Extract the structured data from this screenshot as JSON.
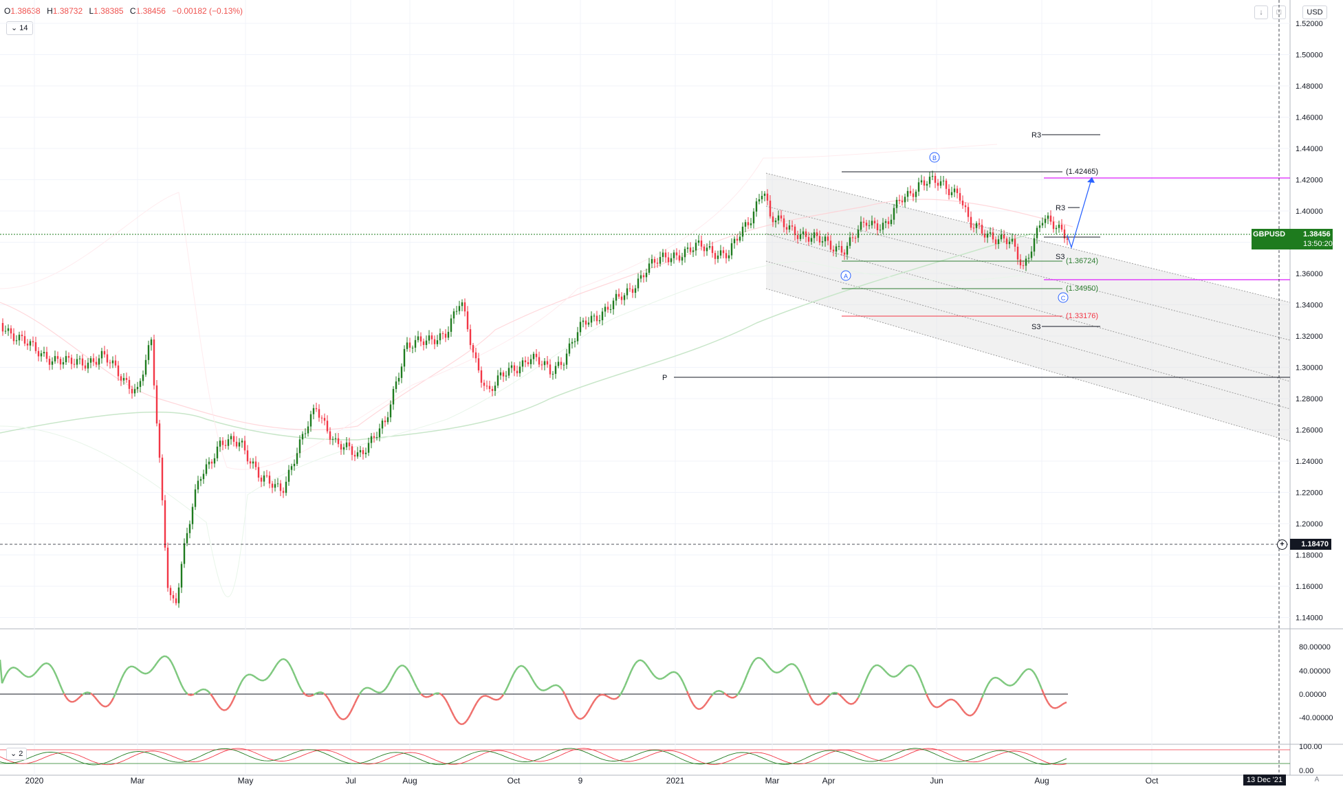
{
  "header": {
    "open_label": "O",
    "open": "1.38638",
    "high_label": "H",
    "high": "1.38732",
    "low_label": "L",
    "low": "1.38385",
    "close_label": "C",
    "close": "1.38456",
    "change": "−0.00182 (−0.13%)",
    "legend_toggle": "14",
    "currency": "USD"
  },
  "price_axis": {
    "ticks": [
      "1.52000",
      "1.50000",
      "1.48000",
      "1.46000",
      "1.44000",
      "1.42000",
      "1.40000",
      "1.38000",
      "1.36000",
      "1.34000",
      "1.32000",
      "1.30000",
      "1.28000",
      "1.26000",
      "1.24000",
      "1.22000",
      "1.20000",
      "1.18000",
      "1.16000",
      "1.14000"
    ],
    "symbol": "GBPUSD",
    "last_price": "1.38456",
    "countdown": "13:50:20",
    "crosshair_price": "1.18470"
  },
  "time_axis": {
    "labels": [
      "2020",
      "Mar",
      "May",
      "Jul",
      "Aug",
      "Oct",
      "9",
      "2021",
      "Mar",
      "Apr",
      "Jun",
      "Aug",
      "Oct"
    ],
    "crosshair_date": "13 Dec '21",
    "auto_button": "A"
  },
  "annotations": {
    "wave_a": "A",
    "wave_b": "B",
    "wave_c": "C",
    "level_1": "(1.42465)",
    "level_2": "(1.36724)",
    "level_3": "(1.34950)",
    "level_4": "(1.33176)",
    "r3_upper": "R3",
    "r3_lower": "R3",
    "s3_upper": "S3",
    "s3_lower": "S3",
    "pivot": "P"
  },
  "oscillator": {
    "ticks": [
      "80.00000",
      "40.00000",
      "0.00000",
      "-40.00000"
    ]
  },
  "stochastic": {
    "legend_toggle": "2",
    "ticks": [
      "100.00",
      "0.00"
    ]
  },
  "colors": {
    "up": "#1e7b1e",
    "down": "#f23645",
    "osc_up": "#7ec87e",
    "osc_down": "#ef6f6c",
    "magenta": "#e040fb",
    "arrow": "#2962ff"
  }
}
